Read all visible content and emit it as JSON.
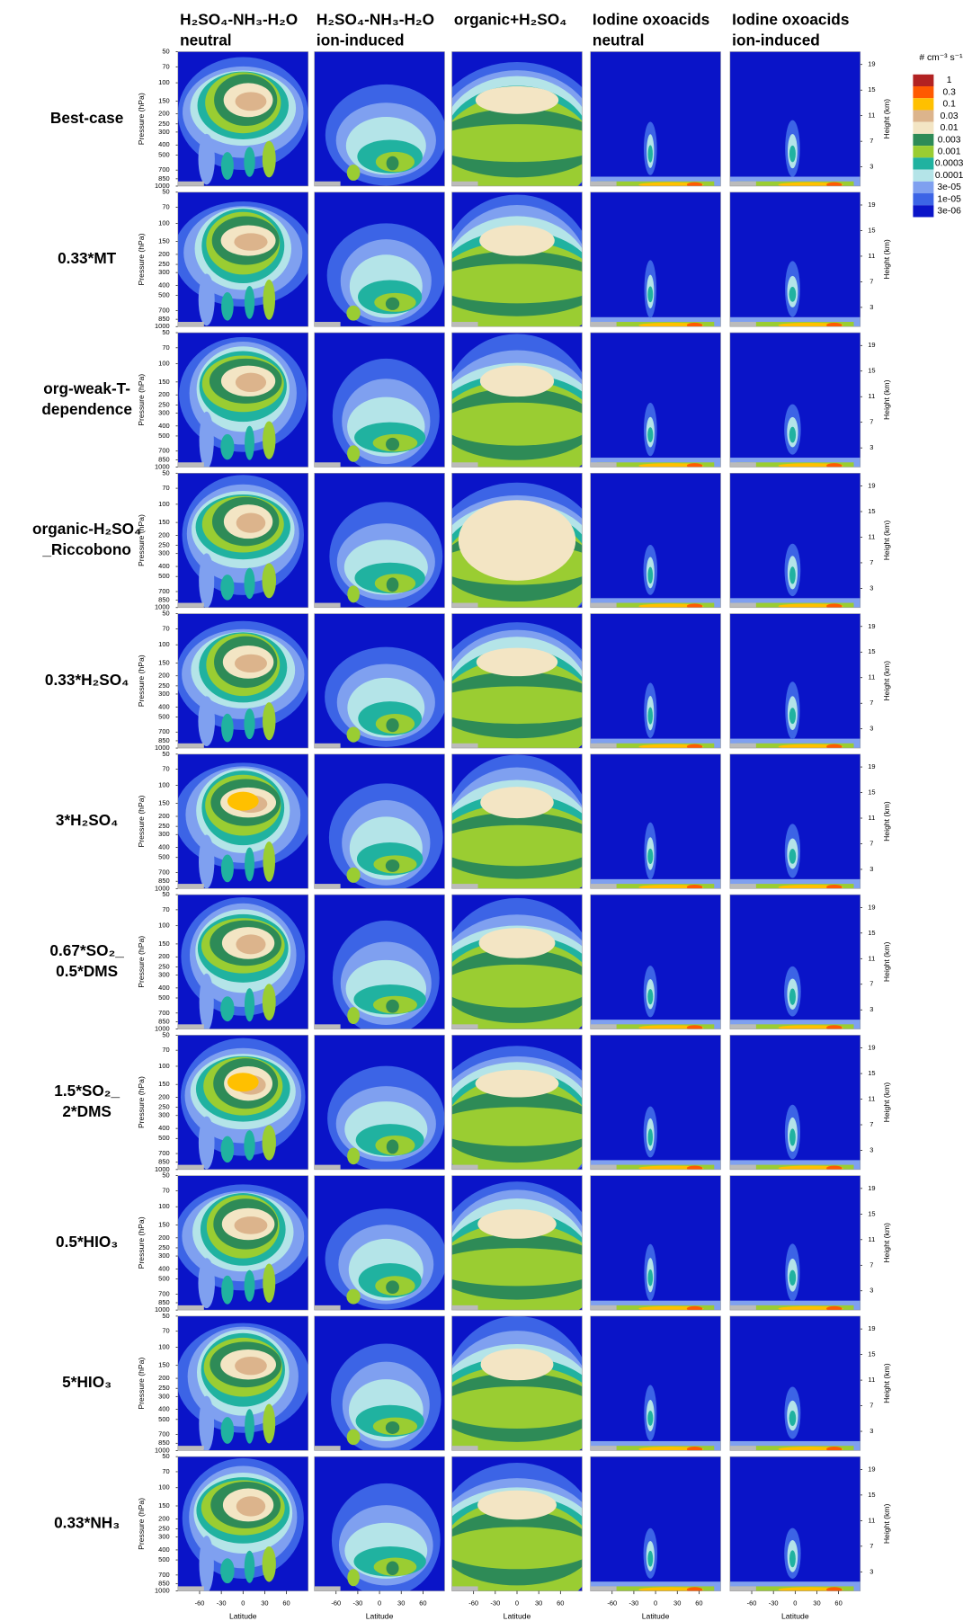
{
  "chart_data": {
    "type": "contour",
    "columns": [
      [
        "H₂SO₄-NH₃-H₂O",
        "neutral"
      ],
      [
        "H₂SO₄-NH₃-H₂O",
        "ion-induced"
      ],
      [
        "organic+H₂SO₄"
      ],
      [
        "Iodine oxoacids",
        "neutral"
      ],
      [
        "Iodine oxoacids",
        "ion-induced"
      ]
    ],
    "rows": [
      [
        "Best-case"
      ],
      [
        "0.33*MT"
      ],
      [
        "org-weak-T-",
        "dependence"
      ],
      [
        "organic-H₂SO₄",
        "_Riccobono"
      ],
      [
        "0.33*H₂SO₄"
      ],
      [
        "3*H₂SO₄"
      ],
      [
        "0.67*SO₂_",
        "0.5*DMS"
      ],
      [
        "1.5*SO₂_",
        "2*DMS"
      ],
      [
        "0.5*HIO₃"
      ],
      [
        "5*HIO₃"
      ],
      [
        "0.33*NH₃"
      ]
    ],
    "xlabel": "Latitude",
    "ylabel": "Pressure (hPa)",
    "y2label": "Height (km)",
    "xlim": [
      -90,
      90
    ],
    "xticks": [
      -60,
      -30,
      0,
      30,
      60
    ],
    "ylim": [
      1000,
      50
    ],
    "ylog": true,
    "yticks": [
      50,
      70,
      100,
      150,
      200,
      250,
      300,
      400,
      500,
      700,
      850,
      1000
    ],
    "y2lim": [
      0,
      21
    ],
    "y2ticks": [
      3,
      7,
      11,
      15,
      19
    ],
    "colorbar": {
      "title": "# cm⁻³ s⁻¹",
      "levels": [
        1,
        0.3,
        0.1,
        0.03,
        0.01,
        0.003,
        0.001,
        0.0003,
        0.0001,
        {
          "value": 3e-05,
          "label": "3e-05"
        },
        {
          "value": 1e-05,
          "label": "1e-05"
        },
        {
          "value": 3e-06,
          "label": "3e-06"
        }
      ],
      "colors": [
        "#b22222",
        "#ff5a00",
        "#ffc000",
        "#dcb48c",
        "#f3e5c4",
        "#2e8b57",
        "#9acd32",
        "#20b2a0",
        "#b4e4e8",
        "#7fa0f0",
        "#3c64e6",
        "#0a14c8"
      ]
    }
  }
}
